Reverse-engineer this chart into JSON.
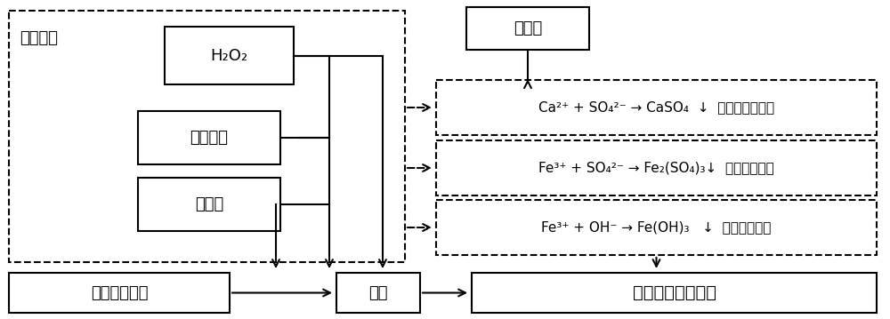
{
  "bg_color": "#ffffff",
  "line_color": "#000000",
  "fenton_label": "芬顿体系",
  "h2o2_label": "H₂O₂",
  "feso4_label": "硫酸亚铁",
  "h2so4_label": "浓硫酸",
  "waste_label": "废弃钻井泥浆",
  "destab_label": "失稳",
  "cao_label": "氧化钙",
  "result_label": "聚结、沉积、脱水",
  "rxn1": "Ca²⁺ + SO₄²⁻ → CaSO₄  ↓  （垢吸附加重）",
  "rxn2": "Fe³⁺ + SO₄²⁻ → Fe₂(SO₄)₃↓  （聚合絮凝）",
  "rxn3": "Fe³⁺ + OH⁻ → Fe(OH)₃   ↓  （聚合絮凝）",
  "lw_solid": 1.5,
  "lw_dashed": 1.5,
  "fs_main": 13,
  "fs_rxn": 11,
  "fs_label": 11
}
